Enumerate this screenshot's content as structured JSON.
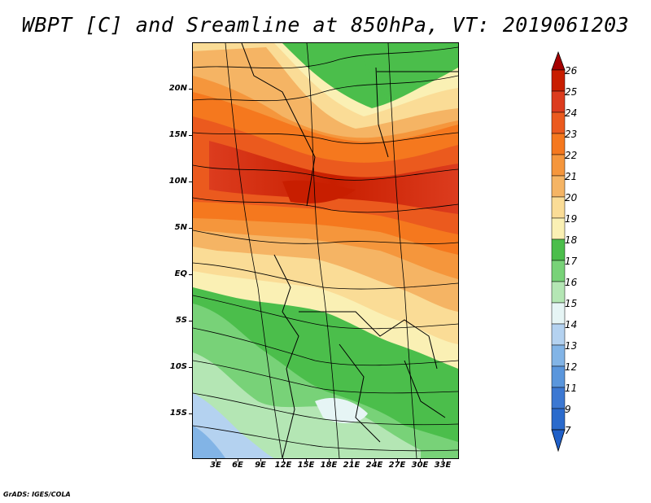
{
  "title": "WBPT [C] and Sreamline at 850hPa, VT: 2019061203",
  "credit": "GrADS: IGES/COLA",
  "map": {
    "variable": "WBPT",
    "units": "C",
    "level": "850hPa",
    "valid_time": "2019061203",
    "lon_range": [
      0,
      35
    ],
    "lat_range": [
      -20,
      24
    ]
  },
  "latitude_labels": [
    "20N",
    "15N",
    "10N",
    "5N",
    "EQ",
    "5S",
    "10S",
    "15S"
  ],
  "longitude_labels": [
    "3E",
    "6E",
    "9E",
    "12E",
    "15E",
    "18E",
    "21E",
    "24E",
    "27E",
    "30E",
    "33E"
  ],
  "colorbar": {
    "labels": [
      "26",
      "25",
      "24",
      "23",
      "22",
      "21",
      "20",
      "19",
      "18",
      "17",
      "16",
      "15",
      "14",
      "13",
      "12",
      "11",
      "9",
      "7"
    ],
    "colors": [
      "#a50000",
      "#c81e00",
      "#dc3c1e",
      "#eb5a1e",
      "#f5781e",
      "#f5963c",
      "#f5b464",
      "#fadc96",
      "#faf0b4",
      "#4bbe4b",
      "#78d278",
      "#b4e6b4",
      "#e6f5f5",
      "#b4d2f0",
      "#82b4e6",
      "#5a96dc",
      "#3c78d2",
      "#2060c8"
    ]
  }
}
